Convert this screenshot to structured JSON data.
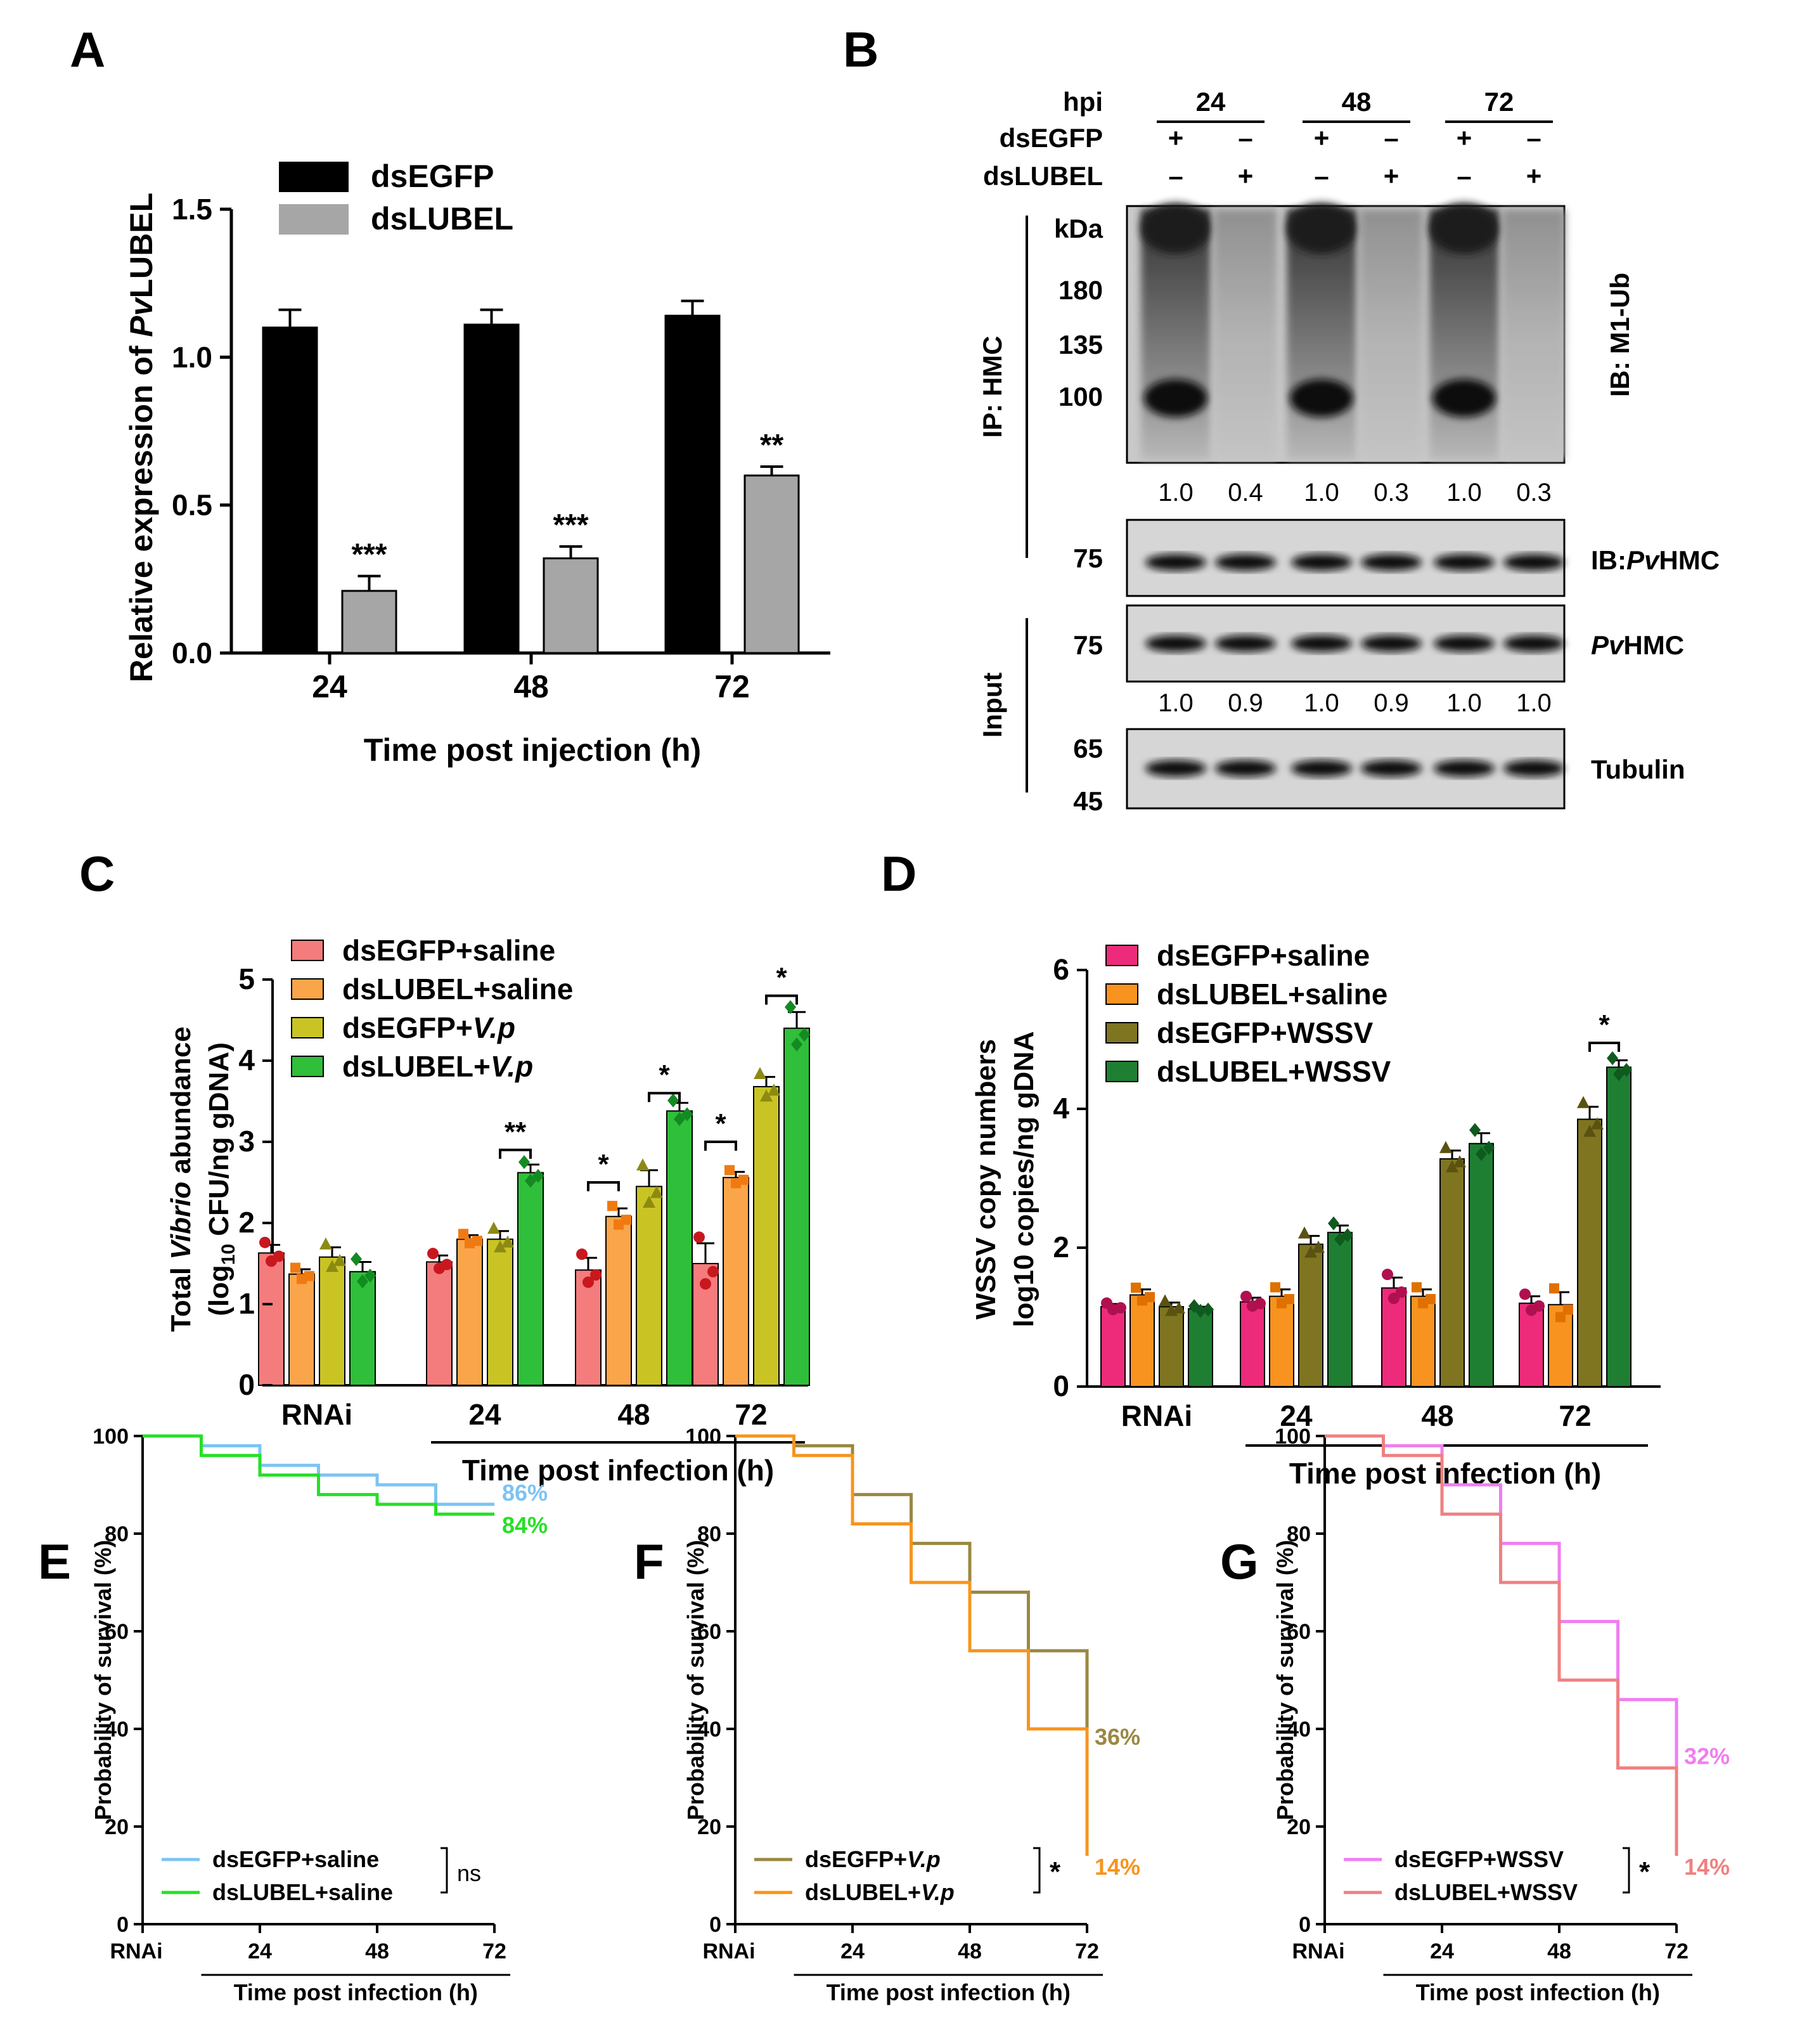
{
  "panels": {
    "A": {
      "letter": "A",
      "chart_data": {
        "type": "bar",
        "categories": [
          "24",
          "48",
          "72"
        ],
        "series": [
          {
            "name": "dsEGFP",
            "color": "#000000",
            "values": [
              1.1,
              1.11,
              1.14
            ],
            "err": [
              0.06,
              0.05,
              0.05
            ]
          },
          {
            "name": "dsLUBEL",
            "color": "#a6a6a6",
            "values": [
              0.21,
              0.32,
              0.6
            ],
            "err": [
              0.05,
              0.04,
              0.03
            ]
          }
        ],
        "sig": [
          "***",
          "***",
          "**"
        ],
        "ylim": [
          0,
          1.5
        ],
        "yticks": [
          "0.0",
          "0.5",
          "1.0",
          "1.5"
        ],
        "ylabel_prefix": "Relative expression of ",
        "ylabel_italic": "Pv",
        "ylabel_suffix": "LUBEL",
        "xlabel": "Time post injection (h)"
      }
    },
    "B": {
      "letter": "B",
      "header": {
        "hpi_label": "hpi",
        "times": [
          "24",
          "48",
          "72"
        ],
        "row1_label": "dsEGFP",
        "row1": [
          "+",
          "–",
          "+",
          "–",
          "+",
          "–"
        ],
        "row2_label": "dsLUBEL",
        "row2": [
          "–",
          "+",
          "–",
          "+",
          "–",
          "+"
        ]
      },
      "kda_label": "kDa",
      "markers_top": [
        "180",
        "135",
        "100"
      ],
      "ip_label": "IP: HMC",
      "ib1_label": "IB: M1-Ub",
      "quant1": [
        "1.0",
        "0.4",
        "1.0",
        "0.3",
        "1.0",
        "0.3"
      ],
      "marker_75a": "75",
      "ib2_label": "IB:",
      "ib2_italic": "Pv",
      "ib2_suffix": "HMC",
      "input_label": "Input",
      "marker_75b": "75",
      "input_italic": "Pv",
      "input_suffix": "HMC",
      "quant2": [
        "1.0",
        "0.9",
        "1.0",
        "0.9",
        "1.0",
        "1.0"
      ],
      "marker_65": "65",
      "marker_45": "45",
      "tubulin_label": "Tubulin"
    },
    "C": {
      "letter": "C",
      "chart_data": {
        "type": "bar",
        "categories": [
          "RNAi",
          "24",
          "48",
          "72"
        ],
        "series": [
          {
            "name": "dsEGFP+saline",
            "color": "#f47c7c",
            "dot": "#c8181e",
            "values": [
              1.63,
              1.52,
              1.42,
              1.5
            ],
            "err": [
              0.1,
              0.08,
              0.15,
              0.25
            ]
          },
          {
            "name": "dsLUBEL+saline",
            "color": "#fba54a",
            "dot": "#f07a12",
            "values": [
              1.37,
              1.8,
              2.08,
              2.56
            ],
            "err": [
              0.06,
              0.05,
              0.1,
              0.07
            ]
          },
          {
            "name": "dsEGFP+V.p",
            "color": "#c9c424",
            "dot": "#8c8a12",
            "values": [
              1.58,
              1.8,
              2.45,
              3.68
            ],
            "err": [
              0.12,
              0.1,
              0.2,
              0.12
            ]
          },
          {
            "name": "dsLUBEL+V.p",
            "color": "#2fbf3a",
            "dot": "#148a22",
            "values": [
              1.4,
              2.62,
              3.38,
              4.4
            ],
            "err": [
              0.12,
              0.1,
              0.1,
              0.2
            ]
          }
        ],
        "legend_prefix": [
          "dsEGFP+saline",
          "dsLUBEL+saline",
          "dsEGFP+",
          "dsLUBEL+"
        ],
        "legend_italic": [
          "",
          "",
          "V.p",
          "V.p"
        ],
        "sig_labels": [
          "**",
          "*",
          "*",
          "*",
          "*"
        ],
        "ylim": [
          0,
          5
        ],
        "yticks": [
          "0",
          "1",
          "2",
          "3",
          "4",
          "5"
        ],
        "ylabel_line1_a": "Total ",
        "ylabel_line1_i": "Vibrio",
        "ylabel_line1_b": " abundance",
        "ylabel_line2_a": "(log",
        "ylabel_line2_sub": "10",
        "ylabel_line2_b": " CFU/ng gDNA)",
        "xlabel": "Time post infection (h)"
      }
    },
    "D": {
      "letter": "D",
      "chart_data": {
        "type": "bar",
        "categories": [
          "RNAi",
          "24",
          "48",
          "72"
        ],
        "series": [
          {
            "name": "dsEGFP+saline",
            "color": "#ee2a7b",
            "dot": "#b0104f",
            "values": [
              1.15,
              1.22,
              1.42,
              1.2
            ],
            "err": [
              0.04,
              0.06,
              0.15,
              0.1
            ]
          },
          {
            "name": "dsLUBEL+saline",
            "color": "#f7931e",
            "dot": "#e07000",
            "values": [
              1.32,
              1.3,
              1.3,
              1.18
            ],
            "err": [
              0.08,
              0.1,
              0.1,
              0.18
            ]
          },
          {
            "name": "dsEGFP+WSSV",
            "color": "#7f7420",
            "dot": "#5a5210",
            "values": [
              1.15,
              2.05,
              3.28,
              3.85
            ],
            "err": [
              0.06,
              0.12,
              0.12,
              0.18
            ]
          },
          {
            "name": "dsLUBEL+WSSV",
            "color": "#1e7f32",
            "dot": "#0f5a1f",
            "values": [
              1.12,
              2.22,
              3.5,
              4.6
            ],
            "err": [
              0.03,
              0.1,
              0.15,
              0.1
            ]
          }
        ],
        "sig_labels": [
          "*"
        ],
        "ylim": [
          0,
          6
        ],
        "yticks": [
          "0",
          "2",
          "4",
          "6"
        ],
        "ylabel_line1": "WSSV copy numbers",
        "ylabel_line2": "log10 copies/ng gDNA",
        "xlabel": "Time post infection (h)"
      }
    },
    "E": {
      "letter": "E",
      "chart_data": {
        "type": "line",
        "steps": true,
        "x_ticks": [
          "RNAi",
          "24",
          "48",
          "72"
        ],
        "series": [
          {
            "name": "dsEGFP+saline",
            "color": "#7cc4f2",
            "x": [
              0,
              12,
              24,
              36,
              48,
              60,
              72
            ],
            "y": [
              100,
              98,
              94,
              92,
              90,
              86,
              86
            ],
            "end_label": "86%"
          },
          {
            "name": "dsLUBEL+saline",
            "color": "#26e026",
            "x": [
              0,
              12,
              24,
              36,
              48,
              60,
              72
            ],
            "y": [
              100,
              96,
              92,
              88,
              86,
              84,
              84
            ],
            "end_label": "84%"
          }
        ],
        "legend_italic": [
          "",
          ""
        ],
        "legend_prefix": [
          "dsEGFP+saline",
          "dsLUBEL+saline"
        ],
        "sig": "ns",
        "ylim": [
          0,
          100
        ],
        "yticks": [
          "0",
          "20",
          "40",
          "60",
          "80",
          "100"
        ],
        "ylabel": "Probability of survival (%)",
        "xlabel": "Time post infection (h)"
      }
    },
    "F": {
      "letter": "F",
      "chart_data": {
        "type": "line",
        "steps": true,
        "x_ticks": [
          "RNAi",
          "24",
          "48",
          "72"
        ],
        "series": [
          {
            "name": "dsEGFP+V.p",
            "color": "#9a8842",
            "x": [
              0,
              12,
              24,
              36,
              48,
              60,
              72
            ],
            "y": [
              100,
              98,
              88,
              78,
              68,
              56,
              36
            ],
            "end_label": "36%"
          },
          {
            "name": "dsLUBEL+V.p",
            "color": "#f7941d",
            "x": [
              0,
              12,
              24,
              36,
              48,
              60,
              72
            ],
            "y": [
              100,
              96,
              82,
              70,
              56,
              40,
              14
            ],
            "end_label": "14%"
          }
        ],
        "legend_prefix": [
          "dsEGFP+",
          "dsLUBEL+"
        ],
        "legend_italic": [
          "V.p",
          "V.p"
        ],
        "sig": "*",
        "ylim": [
          0,
          100
        ],
        "yticks": [
          "0",
          "20",
          "40",
          "60",
          "80",
          "100"
        ],
        "ylabel": "Probability of survival (%)",
        "xlabel": "Time post infection (h)"
      }
    },
    "G": {
      "letter": "G",
      "chart_data": {
        "type": "line",
        "steps": true,
        "x_ticks": [
          "RNAi",
          "24",
          "48",
          "72"
        ],
        "series": [
          {
            "name": "dsEGFP+WSSV",
            "color": "#f07ef0",
            "x": [
              0,
              12,
              24,
              36,
              48,
              60,
              72
            ],
            "y": [
              100,
              98,
              90,
              78,
              62,
              46,
              32
            ],
            "end_label": "32%"
          },
          {
            "name": "dsLUBEL+WSSV",
            "color": "#f08080",
            "x": [
              0,
              12,
              24,
              36,
              48,
              60,
              72
            ],
            "y": [
              100,
              96,
              84,
              70,
              50,
              32,
              14
            ],
            "end_label": "14%"
          }
        ],
        "legend_prefix": [
          "dsEGFP+WSSV",
          "dsLUBEL+WSSV"
        ],
        "legend_italic": [
          "",
          ""
        ],
        "sig": "*",
        "ylim": [
          0,
          100
        ],
        "yticks": [
          "0",
          "20",
          "40",
          "60",
          "80",
          "100"
        ],
        "ylabel": "Probability of survival (%)",
        "xlabel": "Time post infection (h)"
      }
    }
  }
}
